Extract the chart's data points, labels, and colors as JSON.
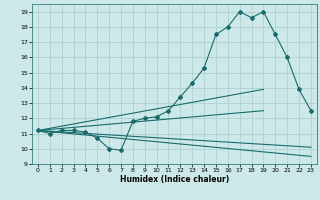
{
  "xlabel": "Humidex (Indice chaleur)",
  "xlim": [
    -0.5,
    23.5
  ],
  "ylim": [
    9,
    19.5
  ],
  "yticks": [
    9,
    10,
    11,
    12,
    13,
    14,
    15,
    16,
    17,
    18,
    19
  ],
  "xticks": [
    0,
    1,
    2,
    3,
    4,
    5,
    6,
    7,
    8,
    9,
    10,
    11,
    12,
    13,
    14,
    15,
    16,
    17,
    18,
    19,
    20,
    21,
    22,
    23
  ],
  "bg_color": "#cce8e8",
  "grid_color": "#aacccc",
  "line_color": "#1a6b6b",
  "series": [
    {
      "x": [
        0,
        1,
        2,
        3,
        4,
        5,
        6,
        7,
        8,
        9,
        10,
        11,
        12,
        13,
        14,
        15,
        16,
        17,
        18,
        19,
        20,
        21,
        22,
        23
      ],
      "y": [
        11.2,
        11.0,
        11.2,
        11.2,
        11.1,
        10.7,
        10.0,
        9.9,
        11.8,
        12.0,
        12.1,
        12.5,
        13.4,
        14.3,
        15.3,
        17.5,
        18.0,
        19.0,
        18.6,
        19.0,
        17.5,
        16.0,
        13.9,
        12.5
      ],
      "marker": "D",
      "markersize": 2.0
    },
    {
      "x": [
        0,
        23
      ],
      "y": [
        11.2,
        9.5
      ],
      "marker": null,
      "markersize": 0
    },
    {
      "x": [
        0,
        23
      ],
      "y": [
        11.2,
        10.1
      ],
      "marker": null,
      "markersize": 0
    },
    {
      "x": [
        0,
        19
      ],
      "y": [
        11.2,
        13.9
      ],
      "marker": null,
      "markersize": 0
    },
    {
      "x": [
        0,
        19
      ],
      "y": [
        11.2,
        12.5
      ],
      "marker": null,
      "markersize": 0
    }
  ]
}
